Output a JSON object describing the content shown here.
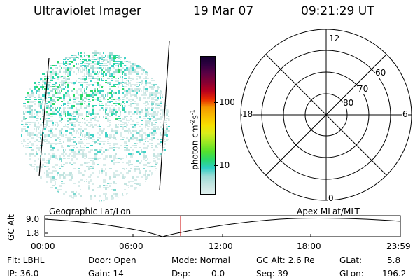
{
  "header": {
    "instrument": "Ultraviolet Imager",
    "date": "19 Mar 07",
    "time": "09:21:29 UT"
  },
  "colorbar": {
    "unit_label": "photon cm",
    "unit_exp1": "-2",
    "unit_s": "s",
    "unit_exp2": "-1",
    "ticks": [
      "100",
      "10"
    ],
    "colors": [
      "#e0f0ee",
      "#c8e6e2",
      "#9edcd6",
      "#2ecfc4",
      "#2bd86a",
      "#55e02c",
      "#9ee822",
      "#d8ec1c",
      "#f6e000",
      "#f8c000",
      "#f59a00",
      "#e82a00",
      "#b8001e",
      "#880032",
      "#5a0044",
      "#300040",
      "#140030"
    ]
  },
  "polar": {
    "mlt_labels": {
      "top": "12",
      "bottom": "0",
      "left": "18",
      "right": "6"
    },
    "lat_labels": [
      "60",
      "70",
      "80"
    ]
  },
  "orbit": {
    "left_title": "Geographic Lat/Lon",
    "right_title": "Apex MLat/MLT",
    "axis_label": "GC Alt",
    "y_ticks": [
      "9.0",
      "1.8"
    ],
    "x_ticks": [
      "00:00",
      "06:00",
      "12:00",
      "18:00",
      "23:59"
    ],
    "marker_color": "#cc0000"
  },
  "footer": {
    "flt": "Flt: LBHL",
    "ip": "IP: 36.0",
    "door": "Door: Open",
    "gain": "Gain: 14",
    "mode": "Mode: Normal",
    "dsp_label": "Dsp:",
    "dsp_value": "0.0",
    "gc_alt": "GC Alt: 2.6 Re",
    "seq": "Seq: 39",
    "glat_label": "GLat:",
    "glat_value": "5.8",
    "glon_label": "GLon:",
    "glon_value": "196.2"
  },
  "image_colors": [
    "#d8ecea",
    "#c2e4e0",
    "#a6dcd6",
    "#7ad8cf",
    "#3ed2c6",
    "#2ad6a0",
    "#2bd86a"
  ]
}
